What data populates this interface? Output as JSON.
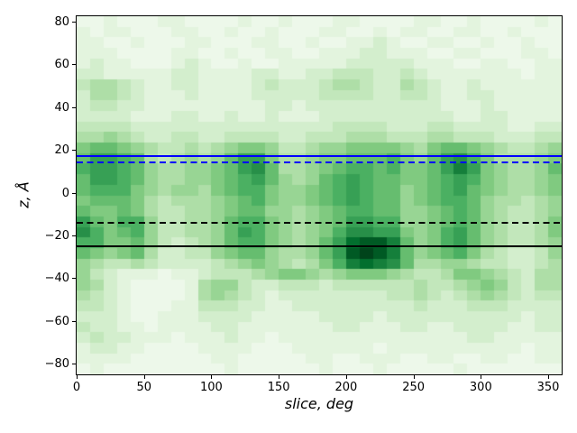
{
  "figure": {
    "background": "#ffffff"
  },
  "chart_data": {
    "type": "heatmap",
    "title": "",
    "xlabel": "slice, deg",
    "ylabel": "z, Å",
    "xlim": [
      0,
      360
    ],
    "ylim": [
      -85,
      82.5
    ],
    "grid_on": false,
    "legend": "none",
    "x_ticks": [
      {
        "value": 0,
        "label": "0"
      },
      {
        "value": 50,
        "label": "50"
      },
      {
        "value": 100,
        "label": "100"
      },
      {
        "value": 150,
        "label": "150"
      },
      {
        "value": 200,
        "label": "200"
      },
      {
        "value": 250,
        "label": "250"
      },
      {
        "value": 300,
        "label": "300"
      },
      {
        "value": 350,
        "label": "350"
      }
    ],
    "y_ticks": [
      {
        "value": 80,
        "label": "80"
      },
      {
        "value": 60,
        "label": "60"
      },
      {
        "value": 40,
        "label": "40"
      },
      {
        "value": 20,
        "label": "20"
      },
      {
        "value": 0,
        "label": "0"
      },
      {
        "value": -20,
        "label": "−20"
      },
      {
        "value": -40,
        "label": "−40"
      },
      {
        "value": -60,
        "label": "−60"
      },
      {
        "value": -80,
        "label": "−80"
      }
    ],
    "colormap": "Greens",
    "colormap_stops": [
      [
        0.0,
        "#f7fcf5"
      ],
      [
        0.125,
        "#e5f5e0"
      ],
      [
        0.25,
        "#c7e9c0"
      ],
      [
        0.375,
        "#a1d99b"
      ],
      [
        0.5,
        "#74c476"
      ],
      [
        0.625,
        "#41ab5d"
      ],
      [
        0.75,
        "#238b45"
      ],
      [
        0.875,
        "#006d2c"
      ],
      [
        1.0,
        "#00441b"
      ]
    ],
    "heatmap_grid": {
      "cols": 36,
      "rows": 34,
      "x_range_deg": [
        0,
        360
      ],
      "z_range_top_to_bottom": [
        82.5,
        -85
      ],
      "value_scale_max": 15,
      "note": "intensity 0-f (hex) per cell, rows listed top (z=+82) to bottom (z=-85)",
      "rows_hex": [
        "112111221111211211122111122112111121",
        "212211122112112111221121221122112111",
        "221121112211122112112232112211211211",
        "222111122112112211222332221122111221",
        "232211123211211222223333322211221122",
        "332222233222233223344433432222222122",
        "455432233222234333455433543223222222",
        "355432223222233333444433443223322222",
        "344332222222223323333333333222322222",
        "333322233223223222333333333322332222",
        "444433333333333333344443334433332233",
        "556543344334444334445554445544433344",
        "788765445456776445667777657887654456",
        "8aa985456568aa7556778889768ab9755567",
        "9aa986556678ab8556789989778aca765568",
        "8aa9865566789a865689a9887789a9765567",
        "89997656657899766789a9886789a8765567",
        "78887545556789766789a988678998655456",
        "877875445567886656789988667898654456",
        "a8799644556899765678aa99667898654457",
        "b97896445568a9765679bbaa7679a8654457",
        "9977864345689976568adeec8679a8654456",
        "8767853344678865568aefec867897543346",
        "65445433334567654579cdcb855665443345",
        "643222122344456776567776544577654355",
        "653211112566433444344444454456764355",
        "543211112565432333333334454345654344",
        "443211122444332233333333343334443333",
        "333211222333322222333323333333333233",
        "433221222233222222233222332233332233",
        "343322212223221222222222222223322222",
        "233221111222211122222212222222222122",
        "222211111122111112211222112211221122",
        "121111111112111111211121111121111111"
      ]
    },
    "hlines": [
      {
        "z": 17,
        "color": "#0000ff",
        "style": "solid",
        "name": "blue-solid-line"
      },
      {
        "z": 14,
        "color": "#0000ff",
        "style": "dashed",
        "name": "blue-dashed-line"
      },
      {
        "z": -14,
        "color": "#000000",
        "style": "dashed",
        "name": "black-dashed-line"
      },
      {
        "z": -25,
        "color": "#000000",
        "style": "solid",
        "name": "black-solid-line"
      }
    ]
  }
}
